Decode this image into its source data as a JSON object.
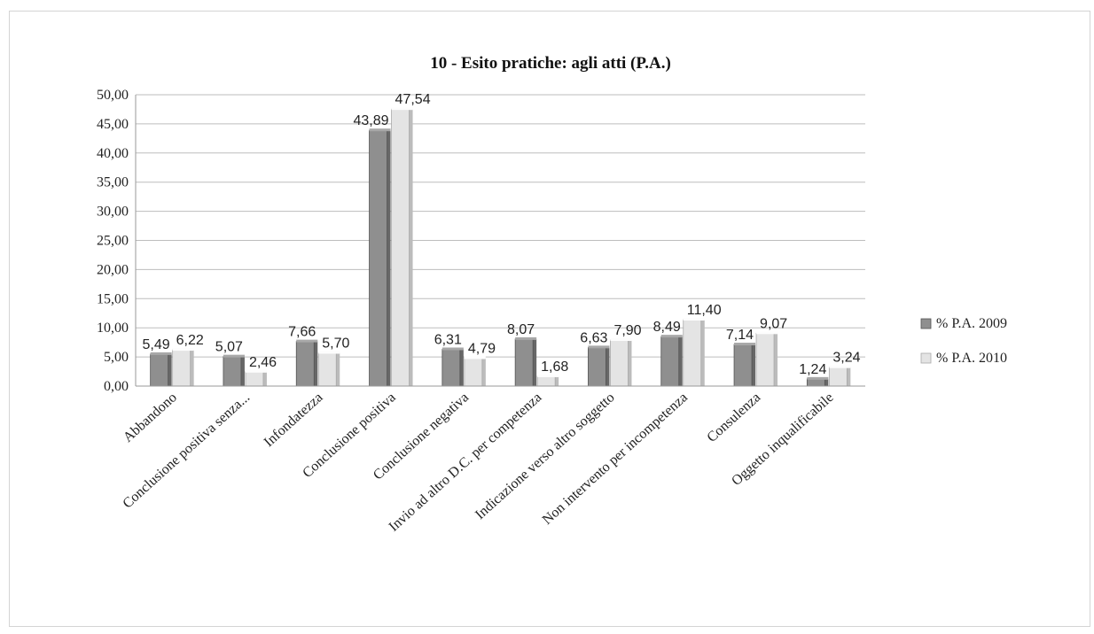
{
  "chart_data": {
    "type": "bar",
    "title": "10 - Esito pratiche: agli atti (P.A.)",
    "xlabel": "",
    "ylabel": "",
    "ylim": [
      0,
      50
    ],
    "yticks": [
      "0,00",
      "5,00",
      "10,00",
      "15,00",
      "20,00",
      "25,00",
      "30,00",
      "35,00",
      "40,00",
      "45,00",
      "50,00"
    ],
    "grid": true,
    "legend_position": "right",
    "categories": [
      "Abbandono",
      "Conclusione positiva senza...",
      "Infondatezza",
      "Conclusione positiva",
      "Conclusione negativa",
      "Invio ad altro D.C. per competenza",
      "Indicazione verso altro soggetto",
      "Non intervento per incompetenza",
      "Consulenza",
      "Oggetto inqualificabile"
    ],
    "series": [
      {
        "name": "% P.A. 2009",
        "color": "#8f8f8f",
        "values": [
          5.49,
          5.07,
          7.66,
          43.89,
          6.31,
          8.07,
          6.63,
          8.49,
          7.14,
          1.24
        ],
        "labels": [
          "5,49",
          "5,07",
          "7,66",
          "43,89",
          "6,31",
          "8,07",
          "6,63",
          "8,49",
          "7,14",
          "1,24"
        ]
      },
      {
        "name": "% P.A. 2010",
        "color": "#e4e4e4",
        "values": [
          6.22,
          2.46,
          5.7,
          47.54,
          4.79,
          1.68,
          7.9,
          11.4,
          9.07,
          3.24
        ],
        "labels": [
          "6,22",
          "2,46",
          "5,70",
          "47,54",
          "4,79",
          "1,68",
          "7,90",
          "11,40",
          "9,07",
          "3,24"
        ]
      }
    ]
  }
}
